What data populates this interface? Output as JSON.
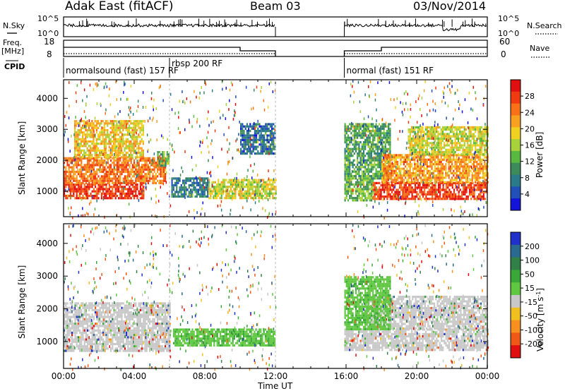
{
  "header": {
    "title": "Adak East (fitACF)",
    "beam": "Beam 03",
    "date": "03/Nov/2014"
  },
  "labels": {
    "nsky": "N.Sky",
    "nsearch": "N.Search",
    "freq": "Freq.",
    "mhz": "[MHz]",
    "nave": "Nave",
    "cpid": "CPID",
    "time_axis": "Time UT",
    "slant_range": "Slant Range [km]",
    "power_label": "Power [dB]",
    "velocity_label": "Velocity [m s",
    "velocity_sup": "-1",
    "velocity_close": "]"
  },
  "top_panels": {
    "noise_ticks_left": [
      "10^5",
      "10^0"
    ],
    "noise_ticks_right": [
      "10^5",
      "10^0"
    ],
    "freq_ticks": [
      "18",
      "8"
    ],
    "nave_ticks": [
      "60",
      "0"
    ]
  },
  "cpid_segments": [
    {
      "label": "normalsound (fast) 157 RF",
      "start_h": 0,
      "end_h": 6.0
    },
    {
      "label": "rbsp 200 RF",
      "start_h": 6.0,
      "end_h": 12.0
    },
    {
      "label": "normal (fast) 151 RF",
      "start_h": 15.9,
      "end_h": 24.0
    }
  ],
  "chart_data": [
    {
      "type": "heatmap",
      "name": "power",
      "xlabel": "Time UT",
      "ylabel": "Slant Range [km]",
      "x_ticks": [
        "00:00",
        "04:00",
        "08:00",
        "12:00",
        "16:00",
        "20:00",
        "00:00"
      ],
      "y_ticks": [
        "1000",
        "2000",
        "3000",
        "4000"
      ],
      "xlim_hours": [
        0,
        24
      ],
      "ylim_km": [
        180,
        4600
      ],
      "data_gap_hours": [
        12.0,
        15.9
      ],
      "colorbar": {
        "label": "Power [dB]",
        "ticks": [
          "4",
          "8",
          "12",
          "16",
          "20",
          "24",
          "28"
        ],
        "colors": [
          "#1414d8",
          "#2050b8",
          "#2a7a8a",
          "#3d8a5a",
          "#58b840",
          "#a8d23a",
          "#f0d020",
          "#f8a020",
          "#f87018",
          "#f03a10",
          "#e01010"
        ]
      },
      "regions": [
        {
          "t0": 0.0,
          "t1": 4.5,
          "r0": 750,
          "r1": 1250,
          "level": 0.93
        },
        {
          "t0": 0.0,
          "t1": 5.8,
          "r0": 1250,
          "r1": 2100,
          "level": 0.8
        },
        {
          "t0": 0.6,
          "t1": 4.5,
          "r0": 2100,
          "r1": 3300,
          "level": 0.62
        },
        {
          "t0": 5.3,
          "t1": 6.0,
          "r0": 1800,
          "r1": 2300,
          "level": 0.35
        },
        {
          "t0": 6.1,
          "t1": 8.2,
          "r0": 820,
          "r1": 1450,
          "level": 0.22
        },
        {
          "t0": 8.2,
          "t1": 12.0,
          "r0": 800,
          "r1": 1400,
          "level": 0.55
        },
        {
          "t0": 10.0,
          "t1": 12.0,
          "r0": 2200,
          "r1": 3200,
          "level": 0.18
        },
        {
          "t0": 15.9,
          "t1": 17.5,
          "r0": 700,
          "r1": 1400,
          "level": 0.4
        },
        {
          "t0": 15.9,
          "t1": 18.5,
          "r0": 1400,
          "r1": 3200,
          "level": 0.35
        },
        {
          "t0": 17.5,
          "t1": 24.0,
          "r0": 750,
          "r1": 1300,
          "level": 0.9
        },
        {
          "t0": 18.0,
          "t1": 24.0,
          "r0": 1300,
          "r1": 2200,
          "level": 0.72
        },
        {
          "t0": 19.5,
          "t1": 24.0,
          "r0": 2200,
          "r1": 3100,
          "level": 0.55
        }
      ]
    },
    {
      "type": "heatmap",
      "name": "velocity",
      "xlabel": "Time UT",
      "ylabel": "Slant Range [km]",
      "x_ticks": [
        "00:00",
        "04:00",
        "08:00",
        "12:00",
        "16:00",
        "20:00",
        "00:00"
      ],
      "y_ticks": [
        "1000",
        "2000",
        "3000",
        "4000"
      ],
      "xlim_hours": [
        0,
        24
      ],
      "ylim_km": [
        180,
        4600
      ],
      "data_gap_hours": [
        12.0,
        15.9
      ],
      "colorbar": {
        "label": "Velocity [m s-1]",
        "ticks": [
          "200",
          "100",
          "50",
          "15",
          "-15",
          "-50",
          "-100",
          "-200"
        ],
        "colors": [
          "#2030c8",
          "#2a6a90",
          "#308048",
          "#3aa838",
          "#60c840",
          "#c8c8c8",
          "#f0c020",
          "#f89020",
          "#f05818",
          "#e01010"
        ]
      },
      "regions": [
        {
          "t0": 0.0,
          "t1": 6.0,
          "r0": 750,
          "r1": 2200,
          "kind": "grey"
        },
        {
          "t0": 6.2,
          "t1": 12.0,
          "r0": 850,
          "r1": 1400,
          "kind": "green"
        },
        {
          "t0": 15.9,
          "t1": 24.0,
          "r0": 750,
          "r1": 1400,
          "kind": "grey"
        },
        {
          "t0": 17.0,
          "t1": 24.0,
          "r0": 1400,
          "r1": 2400,
          "kind": "grey"
        },
        {
          "t0": 15.9,
          "t1": 18.5,
          "r0": 1400,
          "r1": 3000,
          "kind": "green"
        }
      ]
    }
  ],
  "colors": {
    "frame": "#000000",
    "background": "#ffffff"
  }
}
